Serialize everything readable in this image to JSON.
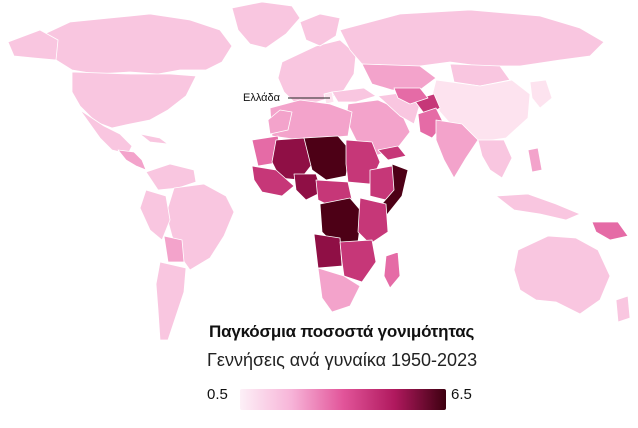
{
  "title": "Παγκόσμια ποσοστά γονιμότητας",
  "subtitle": "Γεννήσεις ανά γυναίκα 1950-2023",
  "annotation": {
    "label": "Ελλάδα"
  },
  "legend": {
    "min_label": "0.5",
    "max_label": "6.5",
    "min_value": 0.5,
    "max_value": 6.5,
    "colors": [
      "#fdf0f7",
      "#f7b4d8",
      "#e2559a",
      "#b0195e",
      "#3d0010"
    ]
  },
  "colors": {
    "background": "#ffffff",
    "country_border": "#ffffff",
    "level_1": "#fde3ef",
    "level_2": "#f9c6e0",
    "level_3": "#f3a3cb",
    "level_4": "#e56ba6",
    "level_5": "#c63778",
    "level_6": "#8f0f45",
    "level_7": "#4d0016"
  }
}
